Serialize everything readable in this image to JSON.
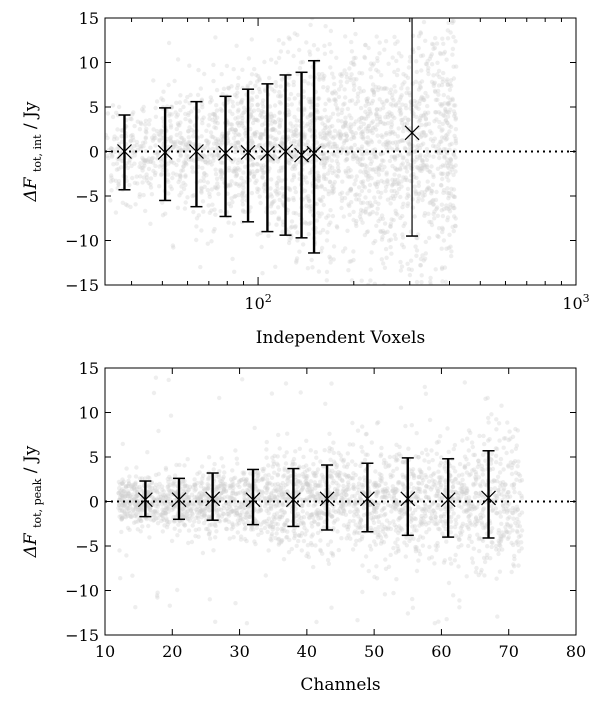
{
  "chart_data": [
    {
      "type": "scatter",
      "xlabel": "Independent Voxels",
      "ylabel": "ΔF",
      "ylabel_sub": "tot, int",
      "ylabel_unit": " / Jy",
      "xscale": "log",
      "xlim": [
        33,
        1000
      ],
      "ylim": [
        -15,
        15
      ],
      "yticks": [
        -15,
        -10,
        -5,
        0,
        5,
        10,
        15
      ],
      "xticks": [
        {
          "value": 100,
          "base": "10",
          "exp": "2"
        },
        {
          "value": 1000,
          "base": "10",
          "exp": "3"
        }
      ],
      "reference_line_y": 0,
      "background_cloud": {
        "x_range": [
          33,
          420
        ],
        "description_color": "#d8d8d8"
      },
      "points": [
        {
          "x": 38,
          "y": 0.0,
          "err_low": -4.3,
          "err_high": 4.1
        },
        {
          "x": 51,
          "y": -0.1,
          "err_low": -5.4,
          "err_high": 5.0
        },
        {
          "x": 64,
          "y": 0.0,
          "err_low": -6.2,
          "err_high": 5.6
        },
        {
          "x": 79,
          "y": -0.2,
          "err_low": -7.1,
          "err_high": 6.4
        },
        {
          "x": 93,
          "y": -0.1,
          "err_low": -7.8,
          "err_high": 7.1
        },
        {
          "x": 107,
          "y": -0.2,
          "err_low": -8.8,
          "err_high": 7.8
        },
        {
          "x": 122,
          "y": 0.0,
          "err_low": -9.4,
          "err_high": 8.6
        },
        {
          "x": 137,
          "y": -0.4,
          "err_low": -9.3,
          "err_high": 9.3
        },
        {
          "x": 150,
          "y": -0.2,
          "err_low": -11.2,
          "err_high": 10.4
        },
        {
          "x": 305,
          "y": 2.1,
          "err_low": -11.6,
          "err_high": 15.5
        }
      ]
    },
    {
      "type": "scatter",
      "xlabel": "Channels",
      "ylabel": "ΔF",
      "ylabel_sub": "tot, peak",
      "ylabel_unit": " / Jy",
      "xscale": "linear",
      "xlim": [
        10,
        80
      ],
      "ylim": [
        -15,
        15
      ],
      "yticks": [
        -15,
        -10,
        -5,
        0,
        5,
        10,
        15
      ],
      "xticks": [
        10,
        20,
        30,
        40,
        50,
        60,
        70,
        80
      ],
      "reference_line_y": 0,
      "background_cloud": {
        "x_range": [
          12,
          72
        ],
        "description_color": "#d8d8d8"
      },
      "points": [
        {
          "x": 16,
          "y": 0.2,
          "err_low": -1.9,
          "err_high": 2.1
        },
        {
          "x": 21,
          "y": 0.2,
          "err_low": -2.2,
          "err_high": 2.4
        },
        {
          "x": 26,
          "y": 0.3,
          "err_low": -2.4,
          "err_high": 2.9
        },
        {
          "x": 32,
          "y": 0.2,
          "err_low": -2.8,
          "err_high": 3.4
        },
        {
          "x": 38,
          "y": 0.2,
          "err_low": -3.0,
          "err_high": 3.5
        },
        {
          "x": 43,
          "y": 0.3,
          "err_low": -3.5,
          "err_high": 3.8
        },
        {
          "x": 49,
          "y": 0.3,
          "err_low": -3.7,
          "err_high": 4.0
        },
        {
          "x": 55,
          "y": 0.3,
          "err_low": -4.1,
          "err_high": 4.6
        },
        {
          "x": 61,
          "y": 0.2,
          "err_low": -4.2,
          "err_high": 4.6
        },
        {
          "x": 67,
          "y": 0.4,
          "err_low": -4.5,
          "err_high": 5.3
        }
      ]
    }
  ]
}
